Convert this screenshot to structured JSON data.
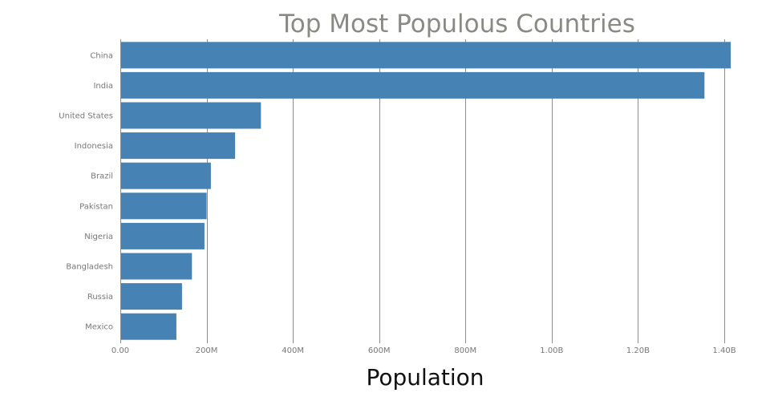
{
  "chart_data": {
    "type": "bar",
    "orientation": "horizontal",
    "title": "Top Most Populous Countries",
    "xlabel": "Population",
    "ylabel": "",
    "xlim": [
      0,
      1400000000
    ],
    "x_ticks": [
      0,
      200000000,
      400000000,
      600000000,
      800000000,
      1000000000,
      1200000000,
      1400000000
    ],
    "x_tick_labels": [
      "0.00",
      "200M",
      "400M",
      "600M",
      "800M",
      "1.00B",
      "1.20B",
      "1.40B"
    ],
    "grid": true,
    "legend": "none",
    "bar_color": "#4682b4",
    "categories": [
      "China",
      "India",
      "United States",
      "Indonesia",
      "Brazil",
      "Pakistan",
      "Nigeria",
      "Bangladesh",
      "Russia",
      "Mexico"
    ],
    "values": [
      1415000000,
      1354000000,
      326000000,
      266000000,
      210000000,
      200000000,
      195000000,
      166000000,
      143000000,
      130000000
    ]
  }
}
